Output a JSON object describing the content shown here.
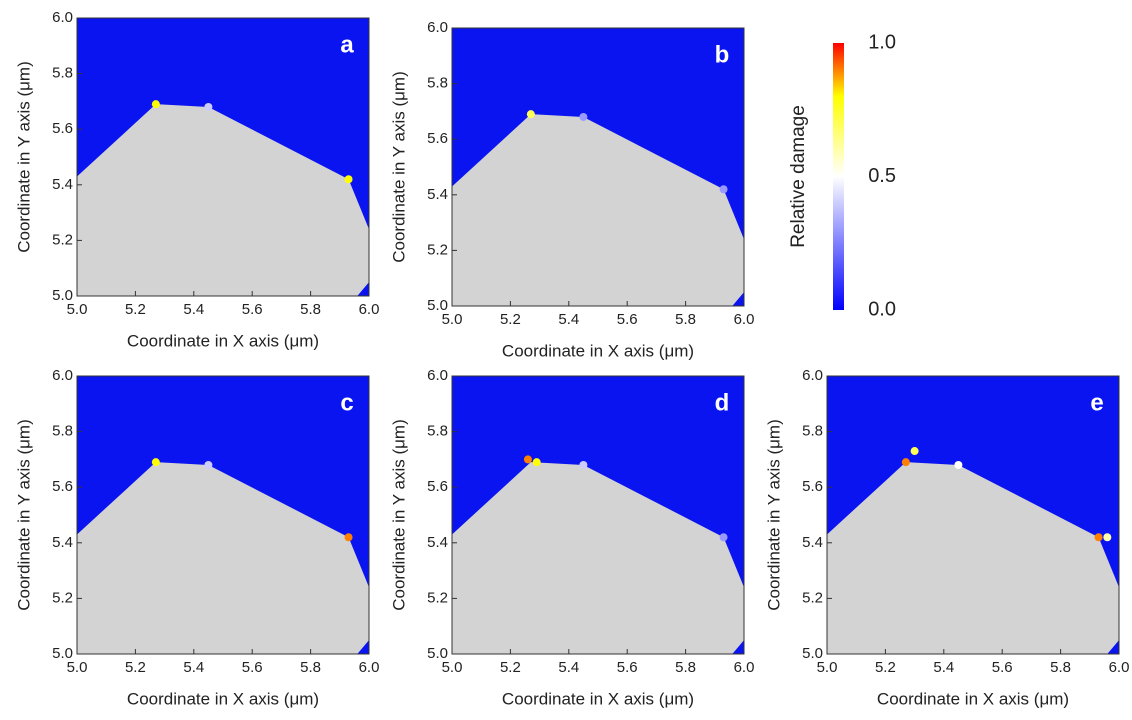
{
  "chart_data": [
    {
      "type": "area",
      "panel_label": "a",
      "xlabel": "Coordinate in X axis (μm)",
      "ylabel": "Coordinate in Y axis (μm)",
      "xlim": [
        5,
        6
      ],
      "ylim": [
        5,
        6
      ],
      "xticks": [
        {
          "value": 5,
          "label": "5.0"
        },
        5.2,
        5.4,
        5.6,
        5.8,
        {
          "value": 6,
          "label": "6.0"
        }
      ],
      "yticks": [
        {
          "value": 5,
          "label": "5.0"
        },
        5.2,
        5.4,
        5.6,
        5.8,
        {
          "value": 6,
          "label": "6.0"
        }
      ],
      "x": [
        5.0,
        5.0,
        5.27,
        5.45,
        5.93,
        6.0,
        6.0,
        5.96
      ],
      "y": [
        5.0,
        5.43,
        5.69,
        5.68,
        5.42,
        5.24,
        5.05,
        5.0
      ],
      "color": "#d3d3d3",
      "background": "#0a14f0",
      "hotspots": {
        "x": [
          5.27,
          5.45,
          5.93
        ],
        "y": [
          5.69,
          5.68,
          5.42
        ],
        "values": [
          0.8,
          0.4,
          0.8
        ]
      }
    },
    {
      "type": "area",
      "panel_label": "b",
      "xlabel": "Coordinate in X axis (μm)",
      "ylabel": "Coordinate in Y axis (μm)",
      "xlim": [
        5,
        6
      ],
      "ylim": [
        5,
        6
      ],
      "xticks": [
        {
          "value": 5,
          "label": "5.0"
        },
        5.2,
        5.4,
        5.6,
        5.8,
        {
          "value": 6,
          "label": "6.0"
        }
      ],
      "yticks": [
        {
          "value": 5,
          "label": "5.0"
        },
        5.2,
        5.4,
        5.6,
        5.8,
        {
          "value": 6,
          "label": "6.0"
        }
      ],
      "x": [
        5.0,
        5.0,
        5.27,
        5.45,
        5.93,
        6.0,
        6.0,
        5.96
      ],
      "y": [
        5.0,
        5.43,
        5.69,
        5.68,
        5.42,
        5.24,
        5.05,
        5.0
      ],
      "color": "#d3d3d3",
      "background": "#0a14f0",
      "hotspots": {
        "x": [
          5.27,
          5.45,
          5.93
        ],
        "y": [
          5.69,
          5.68,
          5.42
        ],
        "values": [
          0.7,
          0.3,
          0.3
        ]
      }
    },
    {
      "type": "area",
      "panel_label": "c",
      "xlabel": "Coordinate in X axis (μm)",
      "ylabel": "Coordinate in Y axis (μm)",
      "xlim": [
        5,
        6
      ],
      "ylim": [
        5,
        6
      ],
      "xticks": [
        {
          "value": 5,
          "label": "5.0"
        },
        5.2,
        5.4,
        5.6,
        5.8,
        {
          "value": 6,
          "label": "6.0"
        }
      ],
      "yticks": [
        {
          "value": 5,
          "label": "5.0"
        },
        5.2,
        5.4,
        5.6,
        5.8,
        {
          "value": 6,
          "label": "6.0"
        }
      ],
      "x": [
        5.0,
        5.0,
        5.27,
        5.45,
        5.93,
        6.0,
        6.0,
        5.96
      ],
      "y": [
        5.0,
        5.43,
        5.69,
        5.68,
        5.42,
        5.24,
        5.05,
        5.0
      ],
      "color": "#d3d3d3",
      "background": "#0a14f0",
      "hotspots": {
        "x": [
          5.27,
          5.45,
          5.93
        ],
        "y": [
          5.69,
          5.68,
          5.42
        ],
        "values": [
          0.8,
          0.4,
          0.9
        ]
      }
    },
    {
      "type": "area",
      "panel_label": "d",
      "xlabel": "Coordinate in X axis (μm)",
      "ylabel": "Coordinate in Y axis (μm)",
      "xlim": [
        5,
        6
      ],
      "ylim": [
        5,
        6
      ],
      "xticks": [
        {
          "value": 5,
          "label": "5.0"
        },
        5.2,
        5.4,
        5.6,
        5.8,
        {
          "value": 6,
          "label": "6.0"
        }
      ],
      "yticks": [
        {
          "value": 5,
          "label": "5.0"
        },
        5.2,
        5.4,
        5.6,
        5.8,
        {
          "value": 6,
          "label": "6.0"
        }
      ],
      "x": [
        5.0,
        5.0,
        5.27,
        5.45,
        5.93,
        6.0,
        6.0,
        5.96
      ],
      "y": [
        5.0,
        5.43,
        5.69,
        5.68,
        5.42,
        5.24,
        5.05,
        5.0
      ],
      "color": "#d3d3d3",
      "background": "#0a14f0",
      "hotspots": {
        "x": [
          5.26,
          5.29,
          5.45,
          5.93
        ],
        "y": [
          5.7,
          5.69,
          5.68,
          5.42
        ],
        "values": [
          0.9,
          0.8,
          0.4,
          0.3
        ]
      }
    },
    {
      "type": "area",
      "panel_label": "e",
      "xlabel": "Coordinate in X axis (μm)",
      "ylabel": "Coordinate in Y axis (μm)",
      "xlim": [
        5,
        6
      ],
      "ylim": [
        5,
        6
      ],
      "xticks": [
        {
          "value": 5,
          "label": "5.0"
        },
        5.2,
        5.4,
        5.6,
        5.8,
        {
          "value": 6,
          "label": "6.0"
        }
      ],
      "yticks": [
        {
          "value": 5,
          "label": "5.0"
        },
        5.2,
        5.4,
        5.6,
        5.8,
        {
          "value": 6,
          "label": "6.0"
        }
      ],
      "x": [
        5.0,
        5.0,
        5.27,
        5.45,
        5.93,
        6.0,
        6.0,
        5.96
      ],
      "y": [
        5.0,
        5.43,
        5.69,
        5.68,
        5.42,
        5.24,
        5.05,
        5.0
      ],
      "color": "#d3d3d3",
      "background": "#0a14f0",
      "hotspots": {
        "x": [
          5.27,
          5.3,
          5.45,
          5.93,
          5.96
        ],
        "y": [
          5.69,
          5.73,
          5.68,
          5.42,
          5.42
        ],
        "values": [
          0.9,
          0.7,
          0.5,
          0.9,
          0.6
        ]
      }
    },
    {
      "type": "colorbar",
      "label": "Relative damage",
      "clim": [
        0,
        1
      ],
      "cticks": [
        {
          "value": 0,
          "label": "0.0"
        },
        0.5,
        {
          "value": 1,
          "label": "1.0"
        }
      ],
      "colormap": [
        {
          "value": 0,
          "color": "#0000ff"
        },
        {
          "value": 0.5,
          "color": "#ffffff"
        },
        {
          "value": 0.8,
          "color": "#ffff00"
        },
        {
          "value": 1,
          "color": "#ff0000"
        }
      ]
    }
  ]
}
